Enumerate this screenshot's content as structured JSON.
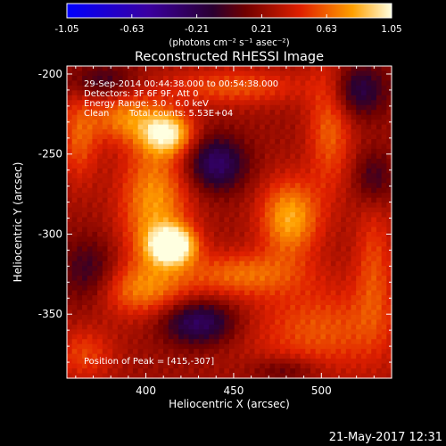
{
  "colorbar": {
    "ticks": [
      "-1.05",
      "-0.63",
      "-0.21",
      "0.21",
      "0.63",
      "1.05"
    ],
    "unit_label": "(photons cm⁻² s⁻¹ asec⁻²)"
  },
  "chart_data": {
    "type": "heatmap",
    "title": "Reconstructed RHESSI Image",
    "xlabel": "Heliocentric X (arcsec)",
    "ylabel": "Heliocentric Y (arcsec)",
    "xlim": [
      355,
      540
    ],
    "ylim": [
      -390,
      -195
    ],
    "x_ticks": [
      "400",
      "450",
      "500"
    ],
    "y_ticks": [
      "-200",
      "-250",
      "-300",
      "-350"
    ],
    "x_tick_values": [
      400,
      450,
      500
    ],
    "y_tick_values": [
      -200,
      -250,
      -300,
      -350
    ],
    "colorbar_range": [
      -1.05,
      1.05
    ],
    "peak": {
      "x": 415,
      "y": -307
    },
    "annotations": {
      "time_range": "29-Sep-2014 00:44:38.000 to 00:54:38.000",
      "detectors": "Detectors: 3F 6F 9F, Att 0",
      "energy_range": "Energy Range: 3.0 - 6.0 keV",
      "clean": "Clean",
      "total_counts": "Total counts: 5.53E+04",
      "peak_position": "Position of Peak = [415,-307]"
    },
    "sources": [
      {
        "x": 415,
        "y": -307,
        "amp": 1.0,
        "sx": 9,
        "sy": 8
      },
      {
        "x": 405,
        "y": -282,
        "amp": 0.55,
        "sx": 14,
        "sy": 30
      },
      {
        "x": 412,
        "y": -237,
        "amp": 0.75,
        "sx": 10,
        "sy": 9
      },
      {
        "x": 388,
        "y": -227,
        "amp": 0.45,
        "sx": 14,
        "sy": 11
      },
      {
        "x": 482,
        "y": -290,
        "amp": 0.6,
        "sx": 12,
        "sy": 17
      },
      {
        "x": 455,
        "y": -325,
        "amp": 0.4,
        "sx": 24,
        "sy": 10
      },
      {
        "x": 395,
        "y": -335,
        "amp": 0.4,
        "sx": 20,
        "sy": 12
      },
      {
        "x": 362,
        "y": -240,
        "amp": 0.35,
        "sx": 8,
        "sy": 20
      },
      {
        "x": 505,
        "y": -230,
        "amp": 0.4,
        "sx": 9,
        "sy": 30
      },
      {
        "x": 500,
        "y": -360,
        "amp": 0.35,
        "sx": 30,
        "sy": 20
      },
      {
        "x": 365,
        "y": -375,
        "amp": 0.3,
        "sx": 12,
        "sy": 12
      },
      {
        "x": 530,
        "y": -320,
        "amp": 0.3,
        "sx": 8,
        "sy": 30
      },
      {
        "x": 450,
        "y": -208,
        "amp": 0.35,
        "sx": 28,
        "sy": 8
      },
      {
        "x": 440,
        "y": -256,
        "amp": -0.55,
        "sx": 12,
        "sy": 12
      },
      {
        "x": 430,
        "y": -355,
        "amp": -0.55,
        "sx": 15,
        "sy": 10
      },
      {
        "x": 368,
        "y": -325,
        "amp": -0.35,
        "sx": 12,
        "sy": 15
      },
      {
        "x": 520,
        "y": -210,
        "amp": -0.45,
        "sx": 12,
        "sy": 12
      },
      {
        "x": 530,
        "y": -265,
        "amp": -0.3,
        "sx": 8,
        "sy": 12
      },
      {
        "x": 375,
        "y": -205,
        "amp": -0.3,
        "sx": 14,
        "sy": 8
      },
      {
        "x": 480,
        "y": -385,
        "amp": -0.25,
        "sx": 14,
        "sy": 6
      }
    ],
    "background": 0.18
  },
  "timestamp": "21-May-2017 12:31"
}
